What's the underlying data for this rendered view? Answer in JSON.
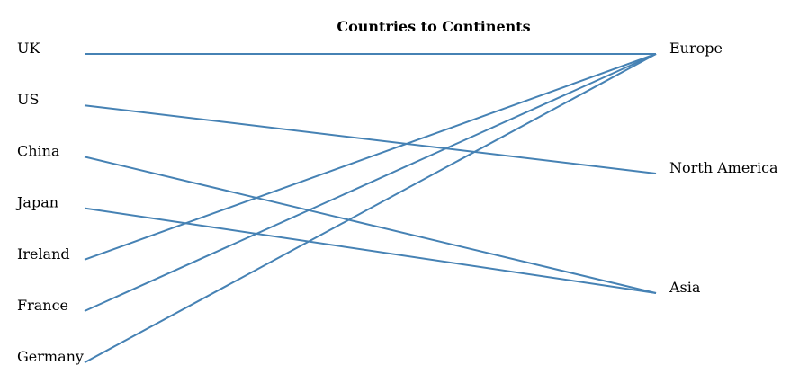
{
  "title": "Countries to Continents",
  "link_color": "#4682b4",
  "countries": [
    "UK",
    "US",
    "China",
    "Japan",
    "Ireland",
    "France",
    "Germany"
  ],
  "continents": [
    "Europe",
    "North America",
    "Asia"
  ],
  "links": [
    {
      "from": "UK",
      "to": "Europe"
    },
    {
      "from": "US",
      "to": "North America"
    },
    {
      "from": "China",
      "to": "Asia"
    },
    {
      "from": "Japan",
      "to": "Asia"
    },
    {
      "from": "Ireland",
      "to": "Europe"
    },
    {
      "from": "France",
      "to": "Europe"
    },
    {
      "from": "Germany",
      "to": "Europe"
    }
  ]
}
